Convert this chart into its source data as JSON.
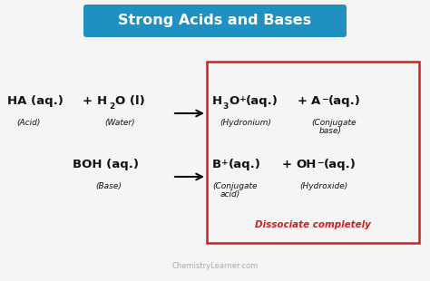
{
  "title": "Strong Acids and Bases",
  "title_bg_color": "#2090c0",
  "title_text_color": "#ffffff",
  "background_color": "#f5f5f5",
  "box_color": "#cc2222",
  "red_text": "Dissociate completely",
  "watermark": "ChemistryLearner.com",
  "watermark_color": "#aaaaaa",
  "arrow_color": "#111111",
  "text_color": "#111111"
}
